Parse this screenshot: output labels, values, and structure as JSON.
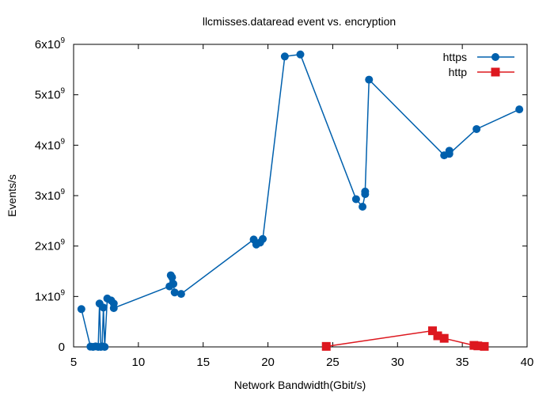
{
  "chart_data": {
    "type": "line",
    "title": "llcmisses.dataread event vs. encryption",
    "xlabel": "Network Bandwidth(Gbit/s)",
    "ylabel": "Events/s",
    "xlim": [
      5,
      40
    ],
    "ylim": [
      0,
      6000000000
    ],
    "grid": false,
    "legend_position": "top-right",
    "x_ticks": [
      {
        "value": 5,
        "label": "5"
      },
      {
        "value": 10,
        "label": "10"
      },
      {
        "value": 15,
        "label": "15"
      },
      {
        "value": 20,
        "label": "20"
      },
      {
        "value": 25,
        "label": "25"
      },
      {
        "value": 30,
        "label": "30"
      },
      {
        "value": 35,
        "label": "35"
      },
      {
        "value": 40,
        "label": "40"
      }
    ],
    "y_ticks": [
      {
        "value": 0,
        "base": "0",
        "exp": ""
      },
      {
        "value": 1000000000,
        "base": "1x10",
        "exp": "9"
      },
      {
        "value": 2000000000,
        "base": "2x10",
        "exp": "9"
      },
      {
        "value": 3000000000,
        "base": "3x10",
        "exp": "9"
      },
      {
        "value": 4000000000,
        "base": "4x10",
        "exp": "9"
      },
      {
        "value": 5000000000,
        "base": "5x10",
        "exp": "9"
      },
      {
        "value": 6000000000,
        "base": "6x10",
        "exp": "9"
      }
    ],
    "series": [
      {
        "name": "https",
        "color": "#0060ad",
        "marker": "circle",
        "points": [
          [
            5.6,
            750000000
          ],
          [
            6.3,
            5000000
          ],
          [
            6.5,
            0
          ],
          [
            6.7,
            10000000
          ],
          [
            6.9,
            0
          ],
          [
            7.0,
            860000000
          ],
          [
            7.1,
            0
          ],
          [
            7.2,
            10000000
          ],
          [
            7.3,
            780000000
          ],
          [
            7.4,
            0
          ],
          [
            7.6,
            960000000
          ],
          [
            7.9,
            920000000
          ],
          [
            8.1,
            860000000
          ],
          [
            8.1,
            770000000
          ],
          [
            12.4,
            1200000000
          ],
          [
            12.5,
            1420000000
          ],
          [
            12.6,
            1380000000
          ],
          [
            12.7,
            1250000000
          ],
          [
            12.8,
            1080000000
          ],
          [
            13.3,
            1050000000
          ],
          [
            18.9,
            2130000000
          ],
          [
            19.1,
            2030000000
          ],
          [
            19.4,
            2070000000
          ],
          [
            19.6,
            2140000000
          ],
          [
            21.3,
            5760000000
          ],
          [
            22.5,
            5800000000
          ],
          [
            26.8,
            2930000000
          ],
          [
            27.3,
            2780000000
          ],
          [
            27.5,
            3030000000
          ],
          [
            27.5,
            3080000000
          ],
          [
            27.8,
            5300000000
          ],
          [
            33.6,
            3800000000
          ],
          [
            34.0,
            3890000000
          ],
          [
            34.0,
            3830000000
          ],
          [
            36.1,
            4320000000
          ],
          [
            39.4,
            4710000000
          ]
        ]
      },
      {
        "name": "http",
        "color": "#dd181f",
        "marker": "square",
        "points": [
          [
            24.5,
            10000000
          ],
          [
            32.7,
            320000000
          ],
          [
            33.1,
            220000000
          ],
          [
            33.6,
            170000000
          ],
          [
            35.9,
            30000000
          ],
          [
            36.2,
            20000000
          ],
          [
            36.7,
            10000000
          ]
        ]
      }
    ]
  }
}
